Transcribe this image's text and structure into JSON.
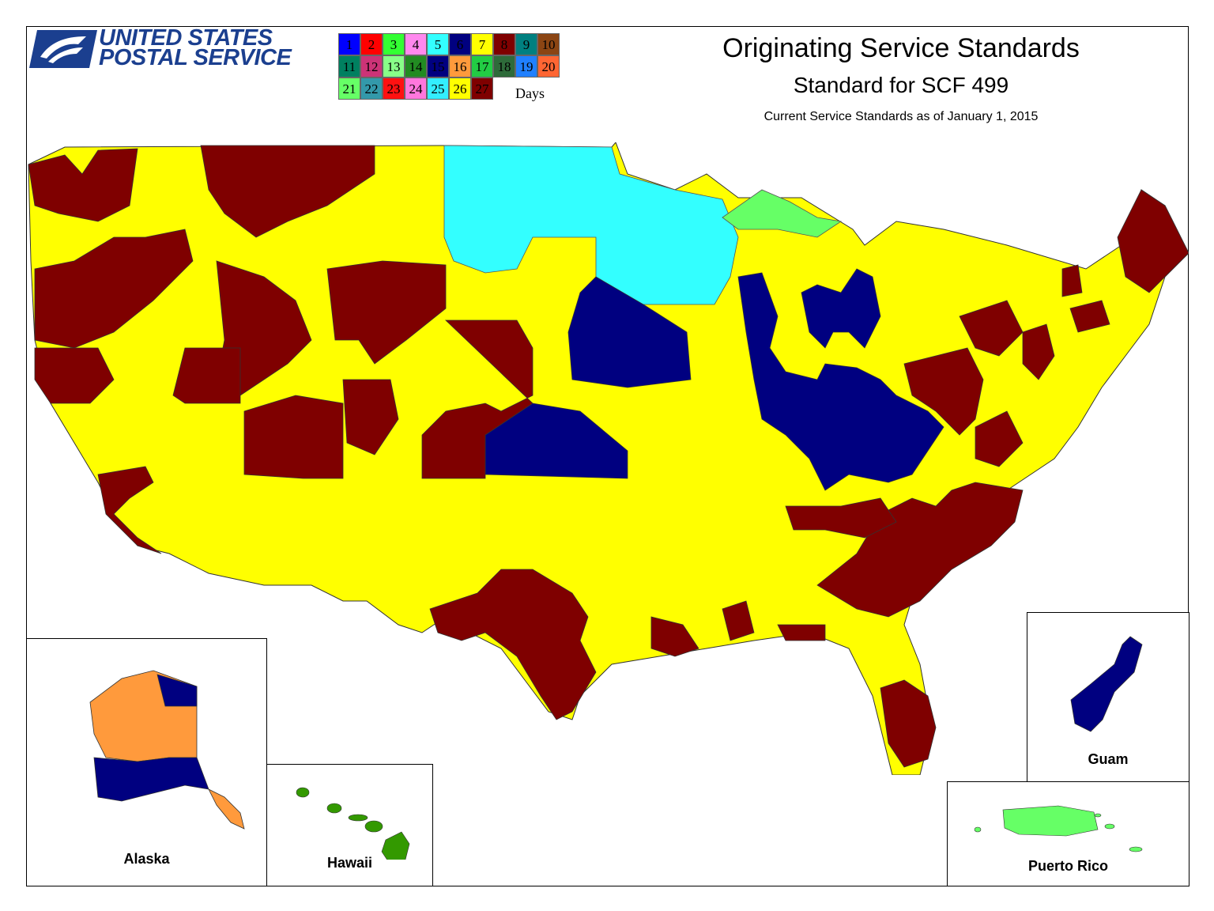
{
  "header": {
    "logo_line1": "UNITED STATES",
    "logo_line2": "POSTAL SERVICE",
    "logo_mark": "eagle-head-logo",
    "title": "Originating Service Standards",
    "subtitle": "Standard for SCF 499",
    "note": "Current Service Standards as of January 1, 2015"
  },
  "legend": {
    "unit": "Days",
    "items": [
      {
        "label": "1",
        "color": "#0000ff"
      },
      {
        "label": "2",
        "color": "#ff0000"
      },
      {
        "label": "3",
        "color": "#33ff33"
      },
      {
        "label": "4",
        "color": "#ff88ee"
      },
      {
        "label": "5",
        "color": "#33ffff"
      },
      {
        "label": "6",
        "color": "#000080"
      },
      {
        "label": "7",
        "color": "#ffff00"
      },
      {
        "label": "8",
        "color": "#7f0000"
      },
      {
        "label": "9",
        "color": "#008080"
      },
      {
        "label": "10",
        "color": "#8b4513"
      },
      {
        "label": "11",
        "color": "#008060"
      },
      {
        "label": "12",
        "color": "#cc3377"
      },
      {
        "label": "13",
        "color": "#88ff88"
      },
      {
        "label": "14",
        "color": "#228b22"
      },
      {
        "label": "15",
        "color": "#000080"
      },
      {
        "label": "16",
        "color": "#ff9a3c"
      },
      {
        "label": "17",
        "color": "#22cc44"
      },
      {
        "label": "18",
        "color": "#2e6b3a"
      },
      {
        "label": "19",
        "color": "#2080ff"
      },
      {
        "label": "20",
        "color": "#ff6633"
      },
      {
        "label": "21",
        "color": "#66ff66"
      },
      {
        "label": "22",
        "color": "#3399aa"
      },
      {
        "label": "23",
        "color": "#ff1111"
      },
      {
        "label": "24",
        "color": "#ff77dd"
      },
      {
        "label": "25",
        "color": "#33eeff"
      },
      {
        "label": "26",
        "color": "#ffff00"
      },
      {
        "label": "27",
        "color": "#7f0000"
      }
    ]
  },
  "insets": {
    "alaska": "Alaska",
    "hawaii": "Hawaii",
    "guam": "Guam",
    "puerto_rico": "Puerto Rico"
  },
  "region_colors": {
    "yellow": "#ffff00",
    "maroon": "#7f0000",
    "navy": "#000080",
    "cyan": "#33ffff",
    "lightgreen": "#66ff66",
    "orange": "#ff9a3c",
    "green": "#339900"
  }
}
